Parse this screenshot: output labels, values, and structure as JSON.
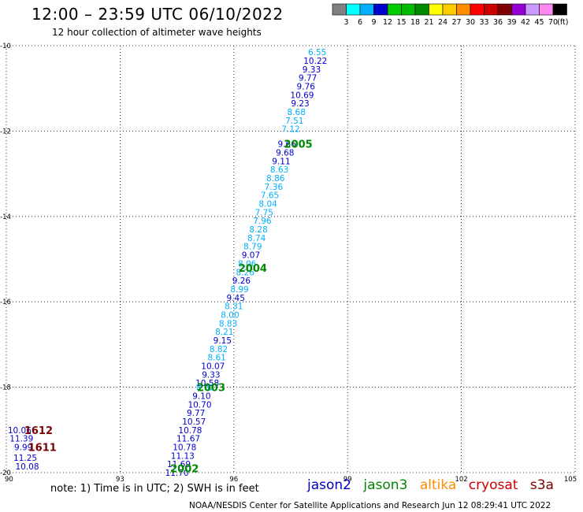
{
  "title": "12:00 – 23:59 UTC 06/10/2022",
  "subtitle": "12 hour collection of altimeter wave heights",
  "note": "note: 1) Time is in UTC; 2) SWH is in feet",
  "credit": "NOAA/NESDIS Center for Satellite Applications and Research    Jun 12 08:29:41 UTC 2022",
  "satellites": [
    {
      "name": "jason2",
      "color": "#0000cc"
    },
    {
      "name": "jason3",
      "color": "#008800"
    },
    {
      "name": "altika",
      "color": "#ff8c00"
    },
    {
      "name": "cryosat",
      "color": "#cc0000"
    },
    {
      "name": "s3a",
      "color": "#7a0000"
    }
  ],
  "color_scale": {
    "labels": [
      "3",
      "6",
      "9",
      "12",
      "15",
      "18",
      "21",
      "24",
      "27",
      "30",
      "33",
      "36",
      "39",
      "42",
      "45",
      "70"
    ],
    "unit": "(ft)",
    "colors": [
      "#808080",
      "#00ffff",
      "#00b0ff",
      "#0000cc",
      "#00cc00",
      "#00bb00",
      "#008800",
      "#ffff00",
      "#ffcc00",
      "#ff8c00",
      "#ff0000",
      "#cc0000",
      "#800000",
      "#9400d3",
      "#cc99ff",
      "#ff88ee",
      "#000000"
    ]
  },
  "chart_data": {
    "type": "scatter",
    "x_ticks": [
      "90",
      "93",
      "96",
      "99",
      "102",
      "105"
    ],
    "y_ticks": [
      "-10",
      "-12",
      "-14",
      "-16",
      "-18",
      "-20"
    ],
    "xlim": [
      90,
      105
    ],
    "ylim": [
      -20,
      -10
    ],
    "grid": true,
    "pass_labels": [
      {
        "text": "2005",
        "x": 97.7,
        "y": -12.3,
        "color": "#008800"
      },
      {
        "text": "2004",
        "x": 96.5,
        "y": -15.2,
        "color": "#008800"
      },
      {
        "text": "2003",
        "x": 95.4,
        "y": -18.0,
        "color": "#008800"
      },
      {
        "text": "2002",
        "x": 94.7,
        "y": -19.9,
        "color": "#008800"
      },
      {
        "text": "1612",
        "x": 90.85,
        "y": -19.0,
        "color": "#7a0000"
      },
      {
        "text": "1611",
        "x": 90.95,
        "y": -19.4,
        "color": "#7a0000"
      }
    ],
    "points": [
      {
        "x": 98.2,
        "y": -10.15,
        "v": "6.55",
        "color": "#00b0ff"
      },
      {
        "x": 98.15,
        "y": -10.35,
        "v": "10.22",
        "color": "#0000cc"
      },
      {
        "x": 98.05,
        "y": -10.55,
        "v": "9.33",
        "color": "#0000cc"
      },
      {
        "x": 97.95,
        "y": -10.75,
        "v": "9.77",
        "color": "#0000cc"
      },
      {
        "x": 97.9,
        "y": -10.95,
        "v": "9.76",
        "color": "#0000cc"
      },
      {
        "x": 97.8,
        "y": -11.15,
        "v": "10.69",
        "color": "#0000cc"
      },
      {
        "x": 97.75,
        "y": -11.35,
        "v": "9.23",
        "color": "#0000cc"
      },
      {
        "x": 97.65,
        "y": -11.55,
        "v": "8.68",
        "color": "#00b0ff"
      },
      {
        "x": 97.6,
        "y": -11.75,
        "v": "7.51",
        "color": "#00b0ff"
      },
      {
        "x": 97.5,
        "y": -11.95,
        "v": "7.12",
        "color": "#00b0ff"
      },
      {
        "x": 97.4,
        "y": -12.3,
        "v": "9.66",
        "color": "#0000cc"
      },
      {
        "x": 97.35,
        "y": -12.5,
        "v": "9.68",
        "color": "#0000cc"
      },
      {
        "x": 97.25,
        "y": -12.7,
        "v": "9.11",
        "color": "#0000cc"
      },
      {
        "x": 97.2,
        "y": -12.9,
        "v": "8.63",
        "color": "#00b0ff"
      },
      {
        "x": 97.1,
        "y": -13.1,
        "v": "8.86",
        "color": "#00b0ff"
      },
      {
        "x": 97.05,
        "y": -13.3,
        "v": "7.36",
        "color": "#00b0ff"
      },
      {
        "x": 96.95,
        "y": -13.5,
        "v": "7.65",
        "color": "#00b0ff"
      },
      {
        "x": 96.9,
        "y": -13.7,
        "v": "8.04",
        "color": "#00b0ff"
      },
      {
        "x": 96.8,
        "y": -13.9,
        "v": "7.75",
        "color": "#00b0ff"
      },
      {
        "x": 96.75,
        "y": -14.1,
        "v": "7.96",
        "color": "#00b0ff"
      },
      {
        "x": 96.65,
        "y": -14.3,
        "v": "8.28",
        "color": "#00b0ff"
      },
      {
        "x": 96.6,
        "y": -14.5,
        "v": "8.74",
        "color": "#00b0ff"
      },
      {
        "x": 96.5,
        "y": -14.7,
        "v": "8.79",
        "color": "#00b0ff"
      },
      {
        "x": 96.45,
        "y": -14.9,
        "v": "9.07",
        "color": "#0000cc"
      },
      {
        "x": 96.35,
        "y": -15.1,
        "v": "8.06",
        "color": "#00b0ff"
      },
      {
        "x": 96.3,
        "y": -15.3,
        "v": "8.26",
        "color": "#00b0ff"
      },
      {
        "x": 96.2,
        "y": -15.5,
        "v": "9.26",
        "color": "#0000cc"
      },
      {
        "x": 96.15,
        "y": -15.7,
        "v": "8.99",
        "color": "#00b0ff"
      },
      {
        "x": 96.05,
        "y": -15.9,
        "v": "9.45",
        "color": "#0000cc"
      },
      {
        "x": 96.0,
        "y": -16.1,
        "v": "8.31",
        "color": "#00b0ff"
      },
      {
        "x": 95.9,
        "y": -16.3,
        "v": "8.00",
        "color": "#00b0ff"
      },
      {
        "x": 95.85,
        "y": -16.5,
        "v": "8.83",
        "color": "#00b0ff"
      },
      {
        "x": 95.75,
        "y": -16.7,
        "v": "8.21",
        "color": "#00b0ff"
      },
      {
        "x": 95.7,
        "y": -16.9,
        "v": "9.15",
        "color": "#0000cc"
      },
      {
        "x": 95.6,
        "y": -17.1,
        "v": "8.82",
        "color": "#00b0ff"
      },
      {
        "x": 95.55,
        "y": -17.3,
        "v": "8.61",
        "color": "#00b0ff"
      },
      {
        "x": 95.45,
        "y": -17.5,
        "v": "10.07",
        "color": "#0000cc"
      },
      {
        "x": 95.4,
        "y": -17.7,
        "v": "9.33",
        "color": "#0000cc"
      },
      {
        "x": 95.3,
        "y": -17.9,
        "v": "10.58",
        "color": "#0000cc"
      },
      {
        "x": 95.25,
        "y": -18.0,
        "v": "8.82",
        "color": "#00b0ff"
      },
      {
        "x": 95.15,
        "y": -18.2,
        "v": "9.10",
        "color": "#0000cc"
      },
      {
        "x": 95.1,
        "y": -18.4,
        "v": "10.70",
        "color": "#0000cc"
      },
      {
        "x": 95.0,
        "y": -18.6,
        "v": "9.77",
        "color": "#0000cc"
      },
      {
        "x": 94.95,
        "y": -18.8,
        "v": "10.57",
        "color": "#0000cc"
      },
      {
        "x": 94.85,
        "y": -19.0,
        "v": "10.78",
        "color": "#0000cc"
      },
      {
        "x": 94.8,
        "y": -19.2,
        "v": "11.67",
        "color": "#0000cc"
      },
      {
        "x": 94.7,
        "y": -19.4,
        "v": "10.78",
        "color": "#0000cc"
      },
      {
        "x": 94.65,
        "y": -19.6,
        "v": "11.13",
        "color": "#0000cc"
      },
      {
        "x": 94.55,
        "y": -19.8,
        "v": "11.69",
        "color": "#0000cc"
      },
      {
        "x": 94.5,
        "y": -20.0,
        "v": "11.70",
        "color": "#0000cc"
      },
      {
        "x": 90.35,
        "y": -19.0,
        "v": "10.06",
        "color": "#0000cc"
      },
      {
        "x": 90.4,
        "y": -19.2,
        "v": "11.39",
        "color": "#0000cc"
      },
      {
        "x": 90.45,
        "y": -19.4,
        "v": "9.99",
        "color": "#0000cc"
      },
      {
        "x": 90.5,
        "y": -19.65,
        "v": "11.25",
        "color": "#0000cc"
      },
      {
        "x": 90.55,
        "y": -19.85,
        "v": "10.08",
        "color": "#0000cc"
      }
    ]
  }
}
